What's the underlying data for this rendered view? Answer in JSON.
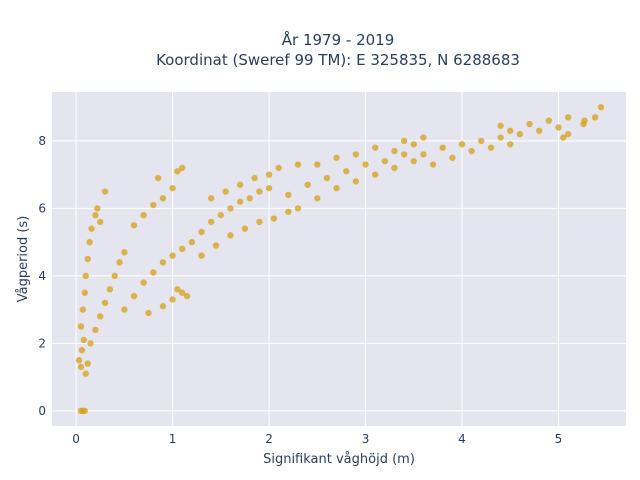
{
  "chart_data": {
    "type": "scatter",
    "title_lines": [
      "År 1979 - 2019",
      "Koordinat (Sweref 99 TM): E 325835, N 6288683"
    ],
    "xlabel": "Signifikant våghöjd (m)",
    "ylabel": "Vågperiod (s)",
    "xlim": [
      -0.25,
      5.7
    ],
    "ylim": [
      -0.45,
      9.45
    ],
    "xticks": [
      0,
      1,
      2,
      3,
      4,
      5
    ],
    "yticks": [
      0,
      2,
      4,
      6,
      8
    ],
    "grid": true,
    "colors": {
      "marker": "#d4a017",
      "plot_bg": "#e5e5f0",
      "grid": "#ffffff"
    },
    "series": [
      {
        "marker_opacity": 0.75,
        "points": [
          [
            0.05,
            0.0
          ],
          [
            0.07,
            0.0
          ],
          [
            0.09,
            0.0
          ],
          [
            0.03,
            1.5
          ],
          [
            0.05,
            1.3
          ],
          [
            0.06,
            1.8
          ],
          [
            0.08,
            2.1
          ],
          [
            0.1,
            1.1
          ],
          [
            0.12,
            1.4
          ],
          [
            0.05,
            2.5
          ],
          [
            0.07,
            3.0
          ],
          [
            0.09,
            3.5
          ],
          [
            0.1,
            4.0
          ],
          [
            0.12,
            4.5
          ],
          [
            0.14,
            5.0
          ],
          [
            0.16,
            5.4
          ],
          [
            0.2,
            5.8
          ],
          [
            0.22,
            6.0
          ],
          [
            0.25,
            5.6
          ],
          [
            0.3,
            6.5
          ],
          [
            0.15,
            2.0
          ],
          [
            0.2,
            2.4
          ],
          [
            0.25,
            2.8
          ],
          [
            0.3,
            3.2
          ],
          [
            0.35,
            3.6
          ],
          [
            0.4,
            4.0
          ],
          [
            0.45,
            4.4
          ],
          [
            0.5,
            4.7
          ],
          [
            0.5,
            3.0
          ],
          [
            0.6,
            3.4
          ],
          [
            0.7,
            3.8
          ],
          [
            0.8,
            4.1
          ],
          [
            0.9,
            4.4
          ],
          [
            1.0,
            4.6
          ],
          [
            1.1,
            4.8
          ],
          [
            1.2,
            5.0
          ],
          [
            0.6,
            5.5
          ],
          [
            0.7,
            5.8
          ],
          [
            0.8,
            6.1
          ],
          [
            0.9,
            6.3
          ],
          [
            1.0,
            6.6
          ],
          [
            1.05,
            7.1
          ],
          [
            0.85,
            6.9
          ],
          [
            1.1,
            7.2
          ],
          [
            0.75,
            2.9
          ],
          [
            0.9,
            3.1
          ],
          [
            1.0,
            3.3
          ],
          [
            1.05,
            3.6
          ],
          [
            1.1,
            3.5
          ],
          [
            1.15,
            3.4
          ],
          [
            1.3,
            5.3
          ],
          [
            1.4,
            5.6
          ],
          [
            1.5,
            5.8
          ],
          [
            1.6,
            6.0
          ],
          [
            1.7,
            6.2
          ],
          [
            1.8,
            6.3
          ],
          [
            1.9,
            6.5
          ],
          [
            2.0,
            6.6
          ],
          [
            1.3,
            4.6
          ],
          [
            1.45,
            4.9
          ],
          [
            1.6,
            5.2
          ],
          [
            1.75,
            5.4
          ],
          [
            1.9,
            5.6
          ],
          [
            2.05,
            5.7
          ],
          [
            2.2,
            5.9
          ],
          [
            1.4,
            6.3
          ],
          [
            1.55,
            6.5
          ],
          [
            1.7,
            6.7
          ],
          [
            1.85,
            6.9
          ],
          [
            2.0,
            7.0
          ],
          [
            2.1,
            7.2
          ],
          [
            2.3,
            7.3
          ],
          [
            2.2,
            6.4
          ],
          [
            2.4,
            6.7
          ],
          [
            2.6,
            6.9
          ],
          [
            2.8,
            7.1
          ],
          [
            3.0,
            7.3
          ],
          [
            3.2,
            7.4
          ],
          [
            3.4,
            7.6
          ],
          [
            2.3,
            6.0
          ],
          [
            2.5,
            6.3
          ],
          [
            2.7,
            6.6
          ],
          [
            2.9,
            6.8
          ],
          [
            3.1,
            7.0
          ],
          [
            3.3,
            7.2
          ],
          [
            3.5,
            7.4
          ],
          [
            2.5,
            7.3
          ],
          [
            2.7,
            7.5
          ],
          [
            2.9,
            7.6
          ],
          [
            3.1,
            7.8
          ],
          [
            3.3,
            7.7
          ],
          [
            3.5,
            7.9
          ],
          [
            3.6,
            7.6
          ],
          [
            3.8,
            7.8
          ],
          [
            4.0,
            7.9
          ],
          [
            4.2,
            8.0
          ],
          [
            4.4,
            8.1
          ],
          [
            4.6,
            8.2
          ],
          [
            4.8,
            8.3
          ],
          [
            3.7,
            7.3
          ],
          [
            3.9,
            7.5
          ],
          [
            4.1,
            7.7
          ],
          [
            4.3,
            7.8
          ],
          [
            4.5,
            7.9
          ],
          [
            4.7,
            8.5
          ],
          [
            4.9,
            8.6
          ],
          [
            5.0,
            8.4
          ],
          [
            5.1,
            8.7
          ],
          [
            5.27,
            8.6
          ],
          [
            5.38,
            8.7
          ],
          [
            5.44,
            9.0
          ],
          [
            5.26,
            8.5
          ],
          [
            3.4,
            8.0
          ],
          [
            3.6,
            8.1
          ],
          [
            4.4,
            8.45
          ],
          [
            4.5,
            8.3
          ],
          [
            5.1,
            8.2
          ],
          [
            5.05,
            8.1
          ]
        ]
      }
    ]
  }
}
